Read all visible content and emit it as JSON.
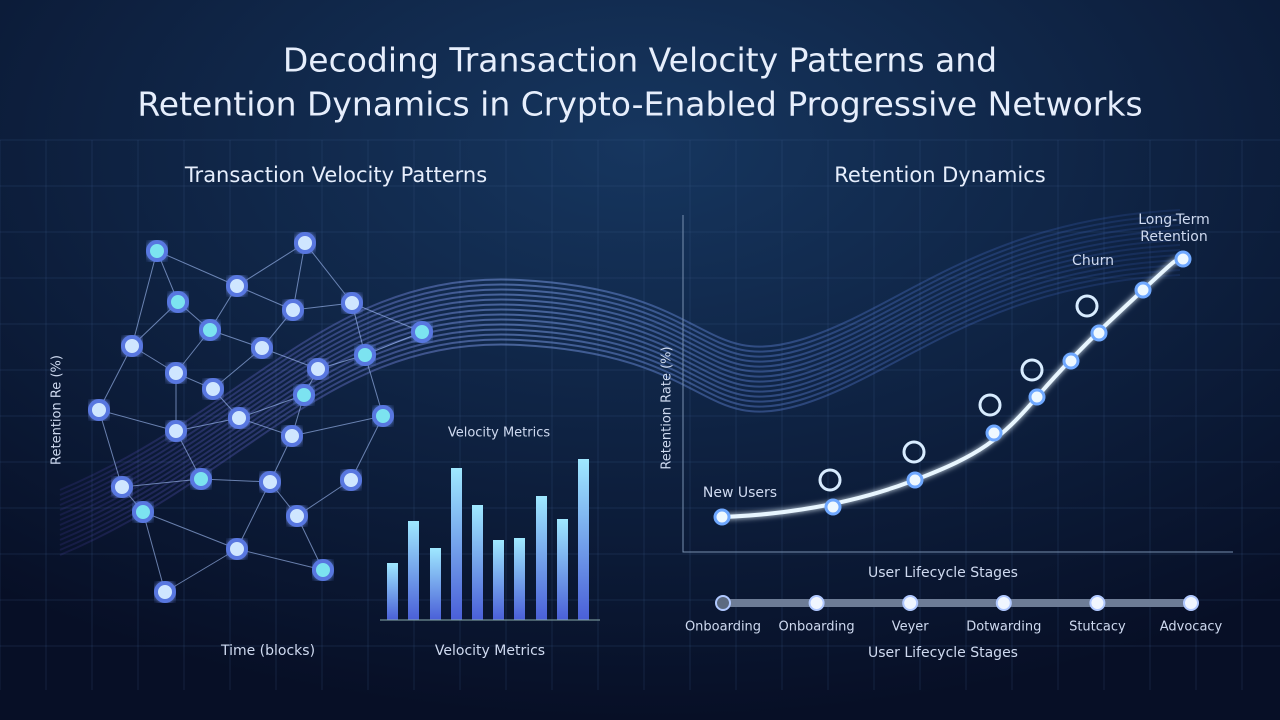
{
  "header": {
    "title_lines": [
      "Decoding Transaction Velocity Patterns and",
      "Retention Dynamics in Crypto-Enabled Progressive Networks"
    ]
  },
  "left_panel": {
    "title": "Transaction Velocity Patterns",
    "y_axis_label": "Retention Re (%)",
    "inset_label": "Velocity Metrics",
    "x_axis_label": "Time (blocks)",
    "bars_label": "Velocity Metrics"
  },
  "right_panel": {
    "title": "Retention Dynamics",
    "y_axis_label": "Retention Rate (%)",
    "annotations": {
      "start": "New Users",
      "churn": "Churn",
      "end_lines": [
        "Long-Term",
        "Retention"
      ]
    },
    "stages_title": "User Lifecycle Stages",
    "stages": [
      "Onboarding",
      "Onboarding",
      "Veyer",
      "Dotwarding",
      "Stutcacy",
      "Advocacy"
    ],
    "x_axis_label": "User Lifecycle Stages"
  }
}
